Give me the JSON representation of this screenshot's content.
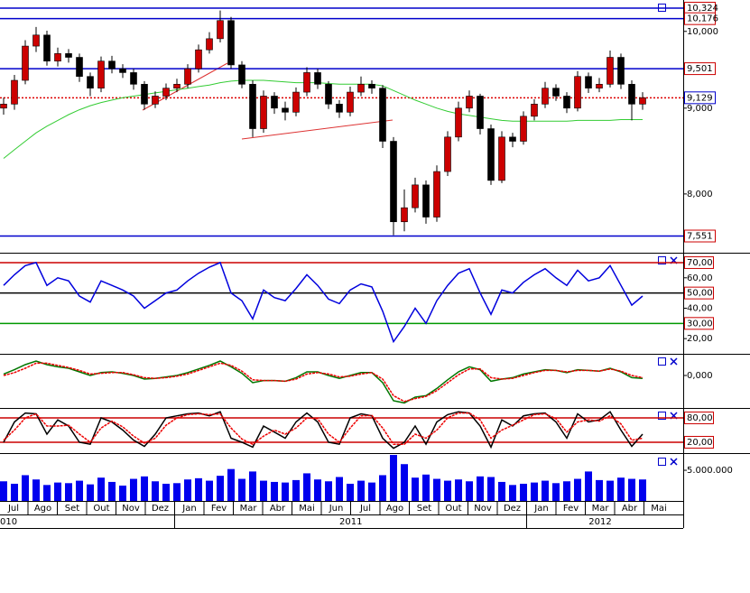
{
  "chart_data": [
    {
      "type": "candlestick",
      "log_scale": true,
      "ylim": [
        7380,
        10440
      ],
      "up_color": "#cc0000",
      "down_color": "#000000",
      "yticks": [
        {
          "value": 10000,
          "label": "10,000"
        },
        {
          "value": 9000,
          "label": "9,000"
        },
        {
          "value": 8000,
          "label": "8,000"
        }
      ],
      "hlines": [
        {
          "value": 10324,
          "label": "10,324",
          "color": "#0000cc"
        },
        {
          "value": 10176,
          "label": "10,176",
          "color": "#0000cc"
        },
        {
          "value": 9501,
          "label": "9,501",
          "color": "#0000cc"
        },
        {
          "value": 9129,
          "label": "9,129",
          "color": "#dd0000"
        },
        {
          "value": 7551,
          "label": "7,551",
          "color": "#0000cc"
        }
      ],
      "open": [
        9000,
        9050,
        9350,
        9800,
        9950,
        9600,
        9700,
        9650,
        9400,
        9250,
        9600,
        9500,
        9450,
        9300,
        9050,
        9150,
        9250,
        9300,
        9500,
        9750,
        9900,
        10150,
        9550,
        9300,
        8750,
        9150,
        9000,
        8950,
        9200,
        9450,
        9300,
        9050,
        8950,
        9200,
        9300,
        9250,
        8600,
        7700,
        7850,
        8100,
        7750,
        8250,
        8650,
        9000,
        9150,
        8750,
        8150,
        8650,
        8600,
        8900,
        9050,
        9250,
        9150,
        9000,
        9400,
        9250,
        9300,
        9650,
        9300,
        9050
      ],
      "high": [
        9130,
        9420,
        9880,
        10060,
        10010,
        9780,
        9760,
        9700,
        9450,
        9660,
        9670,
        9560,
        9500,
        9340,
        9210,
        9310,
        9370,
        9560,
        9820,
        9990,
        10290,
        10200,
        9600,
        9350,
        9220,
        9200,
        9080,
        9260,
        9520,
        9500,
        9340,
        9100,
        9270,
        9400,
        9350,
        9290,
        8650,
        8050,
        8180,
        8150,
        8320,
        8720,
        9080,
        9220,
        9180,
        8800,
        8720,
        8700,
        8960,
        9110,
        9330,
        9300,
        9200,
        9470,
        9450,
        9380,
        9740,
        9700,
        9350,
        9200
      ],
      "low": [
        8920,
        8980,
        9300,
        9720,
        9540,
        9530,
        9580,
        9330,
        9150,
        9200,
        9440,
        9380,
        9230,
        8980,
        9000,
        9100,
        9200,
        9250,
        9450,
        9700,
        9850,
        9500,
        9250,
        8650,
        8700,
        8930,
        8850,
        8900,
        9150,
        9240,
        8990,
        8880,
        8900,
        9150,
        9180,
        8520,
        7560,
        7600,
        7800,
        7680,
        7700,
        8200,
        8600,
        8950,
        8680,
        8100,
        8120,
        8530,
        8560,
        8850,
        9000,
        9090,
        8940,
        8960,
        9190,
        9200,
        9260,
        9240,
        8850,
        8980
      ],
      "close": [
        9050,
        9350,
        9800,
        9950,
        9600,
        9700,
        9650,
        9400,
        9250,
        9600,
        9500,
        9450,
        9300,
        9050,
        9150,
        9250,
        9300,
        9500,
        9750,
        9900,
        10150,
        9550,
        9300,
        8750,
        9150,
        9000,
        8950,
        9200,
        9450,
        9300,
        9050,
        8950,
        9200,
        9300,
        9250,
        8600,
        7700,
        7850,
        8100,
        7750,
        8250,
        8650,
        9000,
        9150,
        8750,
        8150,
        8650,
        8600,
        8900,
        9050,
        9250,
        9150,
        9000,
        9400,
        9250,
        9300,
        9650,
        9300,
        9050,
        9130
      ],
      "series": [
        {
          "color": "#33cc33",
          "values": [
            8400,
            8500,
            8600,
            8700,
            8780,
            8850,
            8920,
            8980,
            9030,
            9070,
            9100,
            9130,
            9150,
            9170,
            9190,
            9210,
            9230,
            9250,
            9270,
            9290,
            9320,
            9340,
            9350,
            9350,
            9350,
            9340,
            9330,
            9320,
            9320,
            9320,
            9310,
            9300,
            9300,
            9300,
            9300,
            9280,
            9220,
            9160,
            9100,
            9050,
            9000,
            8960,
            8930,
            8910,
            8890,
            8870,
            8850,
            8840,
            8840,
            8840,
            8840,
            8840,
            8840,
            8850,
            8850,
            8850,
            8850,
            8860,
            8860,
            8860
          ]
        }
      ]
    },
    {
      "type": "line",
      "ylim": [
        10,
        76.5
      ],
      "yticks": [
        {
          "value": 20,
          "label": "20,00"
        },
        {
          "value": 30,
          "label": "30,00"
        },
        {
          "value": 40,
          "label": "40,00"
        },
        {
          "value": 50,
          "label": "50,00"
        },
        {
          "value": 60,
          "label": "60,00"
        },
        {
          "value": 70,
          "label": "70,00"
        }
      ],
      "levels": [
        {
          "value": 70,
          "color": "#cc0000"
        },
        {
          "value": 50,
          "color": "#000000"
        },
        {
          "value": 30,
          "color": "#009900"
        }
      ],
      "series": [
        {
          "color": "#0000dd",
          "values": [
            55,
            62,
            68,
            70,
            55,
            60,
            58,
            48,
            44,
            58,
            55,
            52,
            48,
            40,
            45,
            50,
            52,
            58,
            63,
            67,
            70,
            50,
            45,
            33,
            52,
            47,
            45,
            53,
            62,
            55,
            46,
            43,
            52,
            56,
            54,
            38,
            18,
            28,
            40,
            30,
            45,
            55,
            63,
            66,
            50,
            36,
            52,
            50,
            57,
            62,
            66,
            60,
            55,
            65,
            58,
            60,
            68,
            55,
            42,
            48
          ]
        }
      ]
    },
    {
      "type": "line",
      "ylim": [
        -0.45,
        0.3
      ],
      "yticks": [
        {
          "value": 0,
          "label": "0,000"
        }
      ],
      "series": [
        {
          "color": "#007700",
          "values": [
            0.02,
            0.08,
            0.15,
            0.2,
            0.15,
            0.12,
            0.1,
            0.05,
            0.0,
            0.04,
            0.05,
            0.03,
            0.0,
            -0.05,
            -0.04,
            -0.02,
            0.0,
            0.04,
            0.09,
            0.14,
            0.2,
            0.12,
            0.03,
            -0.1,
            -0.07,
            -0.07,
            -0.08,
            -0.03,
            0.05,
            0.05,
            0.0,
            -0.04,
            0.0,
            0.04,
            0.04,
            -0.1,
            -0.35,
            -0.38,
            -0.3,
            -0.28,
            -0.18,
            -0.06,
            0.05,
            0.12,
            0.08,
            -0.08,
            -0.05,
            -0.03,
            0.02,
            0.05,
            0.08,
            0.07,
            0.04,
            0.08,
            0.07,
            0.06,
            0.1,
            0.05,
            -0.03,
            -0.04
          ]
        },
        {
          "color": "#ee0000",
          "values": [
            0.0,
            0.04,
            0.1,
            0.17,
            0.17,
            0.14,
            0.11,
            0.07,
            0.02,
            0.03,
            0.04,
            0.04,
            0.01,
            -0.03,
            -0.04,
            -0.03,
            -0.01,
            0.02,
            0.07,
            0.12,
            0.17,
            0.14,
            0.06,
            -0.06,
            -0.07,
            -0.07,
            -0.08,
            -0.05,
            0.02,
            0.04,
            0.02,
            -0.02,
            -0.01,
            0.02,
            0.04,
            -0.05,
            -0.28,
            -0.36,
            -0.32,
            -0.29,
            -0.21,
            -0.1,
            0.01,
            0.09,
            0.09,
            -0.03,
            -0.05,
            -0.04,
            0.0,
            0.04,
            0.07,
            0.07,
            0.05,
            0.07,
            0.07,
            0.06,
            0.09,
            0.06,
            0.0,
            -0.03
          ]
        }
      ]
    },
    {
      "type": "line",
      "ylim": [
        -6.7,
        104.4
      ],
      "yticks": [
        {
          "value": 20,
          "label": "20,00"
        },
        {
          "value": 80,
          "label": "80,00"
        }
      ],
      "levels": [
        {
          "value": 80,
          "color": "#cc0000"
        },
        {
          "value": 20,
          "color": "#cc0000"
        }
      ],
      "series": [
        {
          "color": "#000000",
          "values": [
            20,
            70,
            92,
            90,
            40,
            75,
            60,
            20,
            15,
            80,
            70,
            50,
            25,
            10,
            40,
            80,
            85,
            90,
            92,
            85,
            95,
            30,
            20,
            8,
            60,
            45,
            30,
            70,
            92,
            70,
            20,
            15,
            80,
            90,
            85,
            30,
            5,
            20,
            60,
            15,
            70,
            88,
            95,
            92,
            60,
            8,
            75,
            60,
            85,
            90,
            92,
            70,
            30,
            90,
            70,
            75,
            95,
            50,
            10,
            40
          ]
        },
        {
          "color": "#ee0000",
          "values": [
            25,
            50,
            80,
            90,
            60,
            60,
            62,
            40,
            20,
            55,
            72,
            58,
            35,
            18,
            30,
            62,
            80,
            88,
            90,
            88,
            90,
            55,
            28,
            15,
            35,
            50,
            40,
            55,
            80,
            78,
            40,
            20,
            55,
            85,
            86,
            55,
            15,
            15,
            40,
            30,
            50,
            80,
            92,
            92,
            75,
            30,
            50,
            62,
            75,
            88,
            90,
            78,
            45,
            70,
            75,
            72,
            85,
            65,
            25,
            30
          ]
        }
      ]
    },
    {
      "type": "bar",
      "ylim": [
        0,
        7800000
      ],
      "color": "#0000ee",
      "yticks": [
        {
          "value": 5000000,
          "label": "5.000.000"
        }
      ],
      "values": [
        3200000,
        2800000,
        4200000,
        3500000,
        2600000,
        3000000,
        2900000,
        3300000,
        2700000,
        3800000,
        3100000,
        2500000,
        3600000,
        4000000,
        3200000,
        2800000,
        2900000,
        3500000,
        3700000,
        3300000,
        4100000,
        5200000,
        3600000,
        4800000,
        3300000,
        3100000,
        3000000,
        3400000,
        4500000,
        3500000,
        3200000,
        3900000,
        2800000,
        3300000,
        3000000,
        4200000,
        7500000,
        6000000,
        3800000,
        4300000,
        3600000,
        3300000,
        3500000,
        3200000,
        4000000,
        3900000,
        3100000,
        2600000,
        2800000,
        3000000,
        3300000,
        2900000,
        3200000,
        3600000,
        4800000,
        3400000,
        3300000,
        3800000,
        3600000,
        3500000
      ]
    }
  ],
  "time_axis": {
    "months": [
      "Jul",
      "Ago",
      "Set",
      "Out",
      "Nov",
      "Dez",
      "Jan",
      "Fev",
      "Mar",
      "Abr",
      "Mai",
      "Jun",
      "Jul",
      "Ago",
      "Set",
      "Out",
      "Nov",
      "Dez",
      "Jan",
      "Fev",
      "Mar",
      "Abr",
      "Mai"
    ],
    "years": [
      "010",
      "2011",
      "2012"
    ]
  }
}
